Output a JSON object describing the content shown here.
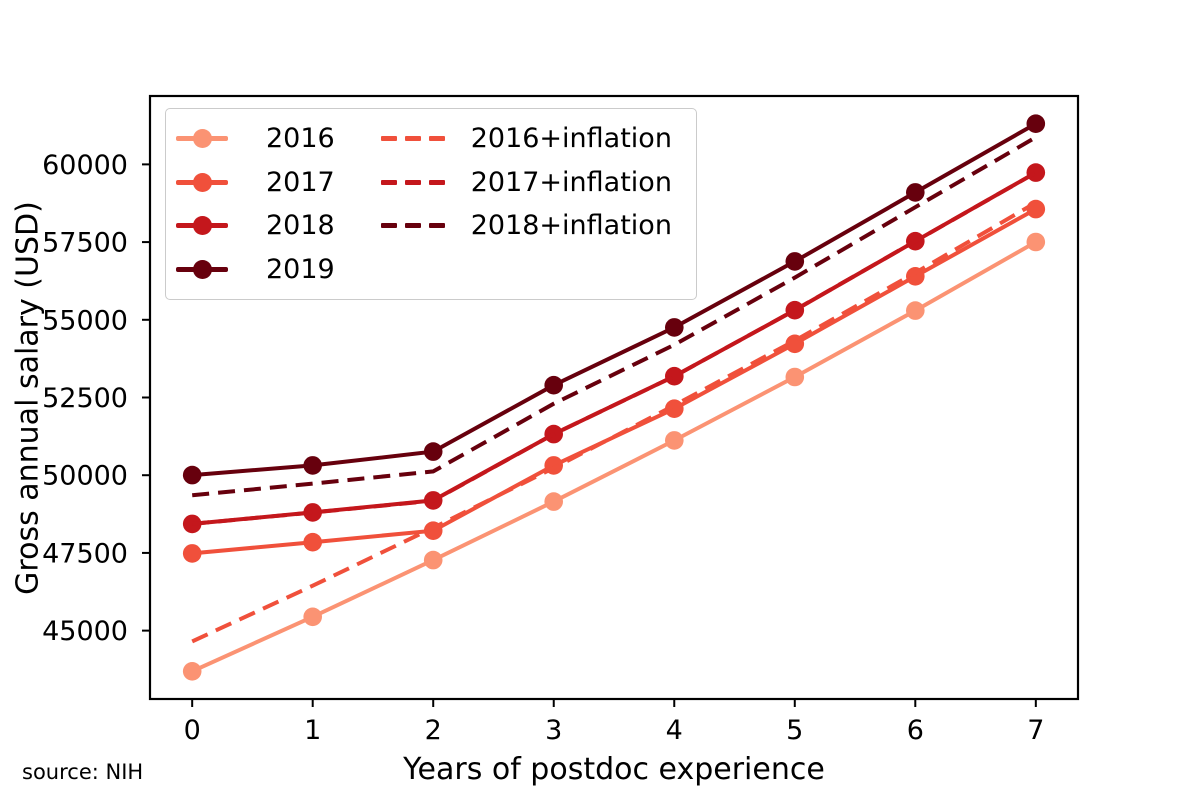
{
  "figure": {
    "background": "#ffffff"
  },
  "annotations": {
    "source": "source: NIH"
  },
  "chart_data": {
    "type": "line",
    "title": "",
    "xlabel": "Years of postdoc experience",
    "ylabel": "Gross annual salary (USD)",
    "x": [
      0,
      1,
      2,
      3,
      4,
      5,
      6,
      7
    ],
    "x_ticks": [
      0,
      1,
      2,
      3,
      4,
      5,
      6,
      7
    ],
    "y_ticks": [
      45000,
      47500,
      50000,
      52500,
      55000,
      57500,
      60000
    ],
    "xlim": [
      -0.35,
      7.35
    ],
    "ylim": [
      42800,
      62200
    ],
    "grid": false,
    "legend": {
      "position": "upper left",
      "columns": 2
    },
    "series": [
      {
        "name": "2016",
        "color": "#FB9373",
        "style": "solid",
        "marker": "circle",
        "values": [
          43692,
          45444,
          47268,
          49152,
          51120,
          53160,
          55296,
          57504
        ]
      },
      {
        "name": "2017",
        "color": "#F0503B",
        "style": "solid",
        "marker": "circle",
        "values": [
          47484,
          47844,
          48216,
          50316,
          52140,
          54228,
          56400,
          58560
        ]
      },
      {
        "name": "2018",
        "color": "#C4171C",
        "style": "solid",
        "marker": "circle",
        "values": [
          48432,
          48804,
          49188,
          51324,
          53184,
          55308,
          57528,
          59736
        ]
      },
      {
        "name": "2019",
        "color": "#67000D",
        "style": "solid",
        "marker": "circle",
        "values": [
          50004,
          50316,
          50760,
          52896,
          54756,
          56880,
          59100,
          61308
        ]
      },
      {
        "name": "2016+inflation",
        "color": "#F0503B",
        "style": "dashed",
        "marker": "none",
        "values": [
          44653,
          46444,
          48308,
          50233,
          52245,
          54330,
          56513,
          58769
        ]
      },
      {
        "name": "2017+inflation",
        "color": "#C4171C",
        "style": "dashed",
        "marker": "none",
        "values": [
          48434,
          48801,
          49180,
          51322,
          53183,
          55313,
          57528,
          59731
        ]
      },
      {
        "name": "2018+inflation",
        "color": "#67000D",
        "style": "dashed",
        "marker": "none",
        "values": [
          49352,
          49731,
          50123,
          52299,
          54194,
          56359,
          58621,
          60871
        ]
      }
    ]
  }
}
